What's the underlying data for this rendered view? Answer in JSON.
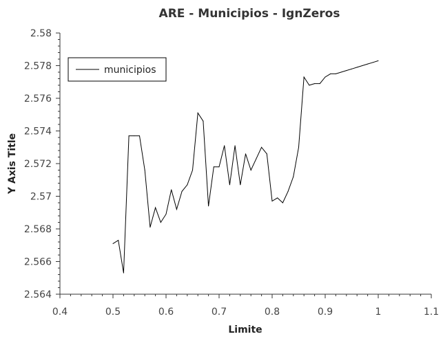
{
  "chart_data": {
    "type": "line",
    "title": "ARE - Municipios - IgnZeros",
    "xlabel": "Limite",
    "ylabel": "Y Axis Title",
    "xlim": [
      0.4,
      1.1
    ],
    "ylim": [
      2.564,
      2.58
    ],
    "xticks": [
      "0.4",
      "0.5",
      "0.6",
      "0.7",
      "0.8",
      "0.9",
      "1",
      "1.1"
    ],
    "yticks": [
      "2.564",
      "2.566",
      "2.568",
      "2.57",
      "2.572",
      "2.574",
      "2.576",
      "2.578",
      "2.58"
    ],
    "grid": false,
    "legend_position": "top-left",
    "series": [
      {
        "name": "municipios",
        "color": "#000000",
        "x": [
          0.5,
          0.51,
          0.52,
          0.53,
          0.54,
          0.55,
          0.56,
          0.57,
          0.58,
          0.59,
          0.6,
          0.61,
          0.62,
          0.63,
          0.64,
          0.65,
          0.66,
          0.67,
          0.68,
          0.69,
          0.7,
          0.71,
          0.72,
          0.73,
          0.74,
          0.75,
          0.76,
          0.77,
          0.78,
          0.79,
          0.8,
          0.81,
          0.82,
          0.83,
          0.84,
          0.85,
          0.86,
          0.87,
          0.88,
          0.89,
          0.9,
          0.91,
          0.92,
          0.93,
          0.94,
          0.95,
          0.96,
          0.97,
          0.98,
          0.99,
          1.0
        ],
        "y": [
          2.5671,
          2.5673,
          2.5653,
          2.5737,
          2.5737,
          2.5737,
          2.5716,
          2.5681,
          2.5693,
          2.5684,
          2.5689,
          2.5704,
          2.5692,
          2.5703,
          2.5707,
          2.5716,
          2.5751,
          2.5746,
          2.5694,
          2.5718,
          2.5718,
          2.5731,
          2.5707,
          2.5731,
          2.5707,
          2.5726,
          2.5716,
          2.5723,
          2.573,
          2.5726,
          2.5697,
          2.5699,
          2.5696,
          2.5703,
          2.5712,
          2.573,
          2.5773,
          2.5768,
          2.5769,
          2.5769,
          2.5773,
          2.5775,
          2.5775,
          2.5776,
          2.5777,
          2.5778,
          2.5779,
          2.578,
          2.5781,
          2.5782,
          2.5783
        ]
      }
    ]
  }
}
